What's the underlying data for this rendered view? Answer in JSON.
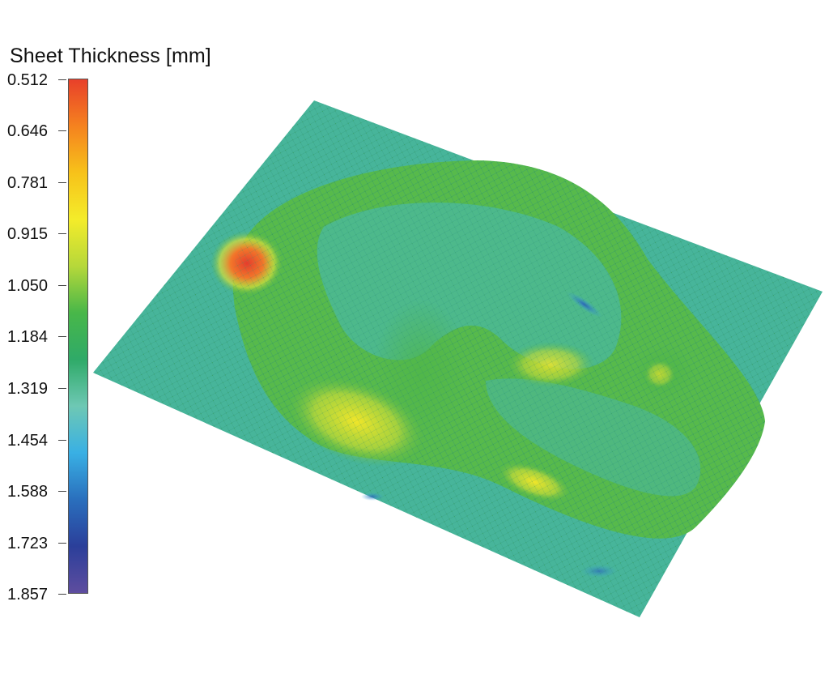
{
  "legend": {
    "title": "Sheet Thickness [mm]",
    "ticks": [
      "0.512",
      "0.646",
      "0.781",
      "0.915",
      "1.050",
      "1.184",
      "1.319",
      "1.454",
      "1.588",
      "1.723",
      "1.857"
    ],
    "gradient": [
      "#e8402a",
      "#f5821f",
      "#f7c21a",
      "#f4ec2a",
      "#b6d83a",
      "#48b749",
      "#2faa68",
      "#6ec8b4",
      "#39b0e4",
      "#2a6fbd",
      "#2b3f9a",
      "#5e4d9f"
    ]
  },
  "plot_colors": {
    "base": "#46b49a",
    "thin": "#e53d2c",
    "warm": "#efe62f",
    "green": "#55b848",
    "blue": "#2b7fc6"
  }
}
